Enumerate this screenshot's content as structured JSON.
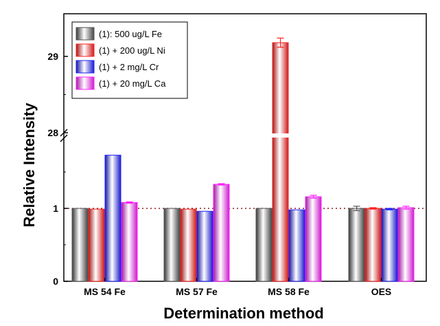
{
  "chart_data": {
    "type": "bar",
    "title": "",
    "xlabel": "Determination method",
    "ylabel": "Relative Intensity",
    "categories": [
      "MS 54 Fe",
      "MS 57 Fe",
      "MS 58 Fe",
      "OES"
    ],
    "y_axis": {
      "broken": true,
      "lower_segment": {
        "range": [
          0,
          2
        ],
        "ticks": [
          0,
          1
        ],
        "tick_labels": [
          "0",
          "1"
        ]
      },
      "upper_segment": {
        "range": [
          27.75,
          29.4
        ],
        "ticks": [
          28,
          29
        ],
        "tick_labels": [
          "28",
          "29"
        ]
      }
    },
    "reference_line": {
      "y": 1,
      "style": "dotted",
      "color": "#8b1a1a"
    },
    "series": [
      {
        "name": "(1): 500 ug/L Fe",
        "color": "#555555",
        "values": [
          1.0,
          1.0,
          1.0,
          1.0
        ],
        "errors": [
          0.0,
          0.0,
          0.0,
          0.03
        ]
      },
      {
        "name": "(1) + 200 ug/L Ni",
        "color": "#ff2020",
        "values": [
          0.99,
          0.99,
          29.18,
          1.0
        ],
        "errors": [
          0.0,
          0.0,
          0.06,
          0.01
        ]
      },
      {
        "name": "(1) + 2 mg/L Cr",
        "color": "#2020ff",
        "values": [
          1.73,
          0.96,
          0.98,
          0.99
        ],
        "errors": [
          0.0,
          0.0,
          0.0,
          0.01
        ]
      },
      {
        "name": "(1) + 20 mg/L Ca",
        "color": "#ff20ff",
        "values": [
          1.08,
          1.33,
          1.16,
          1.01
        ],
        "errors": [
          0.01,
          0.01,
          0.02,
          0.02
        ]
      }
    ],
    "legend": {
      "placement": "top-left"
    }
  }
}
